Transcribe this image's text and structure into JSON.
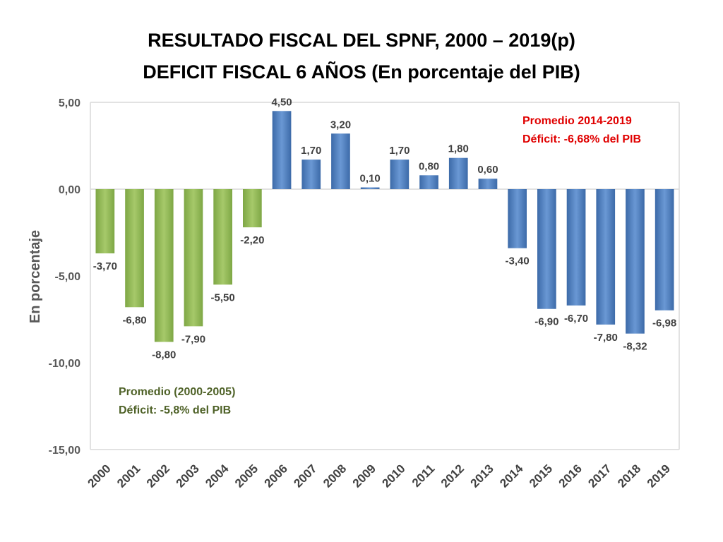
{
  "title": {
    "line1": "RESULTADO FISCAL DEL SPNF, 2000 – 2019(p)",
    "line2": "DEFICIT FISCAL 6 AÑOS (En porcentaje del PIB)"
  },
  "colors": {
    "green_series": "#8fbc4f",
    "blue_series": "#4f81bd",
    "annotation_green": "#4f6228",
    "annotation_red": "#e00000",
    "axis_text": "#595959"
  },
  "annotations": {
    "recent": {
      "line1": "Promedio 2014-2019",
      "line2": "Déficit: -6,68% del PIB"
    },
    "early": {
      "line1": "Promedio (2000-2005)",
      "line2": "Déficit: -5,8% del PIB"
    }
  },
  "chart_data": {
    "type": "bar",
    "title": "RESULTADO FISCAL DEL SPNF, 2000 – 2019(p) DEFICIT FISCAL 6 AÑOS (En porcentaje del PIB)",
    "xlabel": "",
    "ylabel": "En porcentaje",
    "ylim": [
      -15,
      5
    ],
    "yticks": [
      5,
      0,
      -5,
      -10,
      -15
    ],
    "ytick_labels": [
      "5,00",
      "0,00",
      "-5,00",
      "-10,00",
      "-15,00"
    ],
    "grid": false,
    "legend": "none",
    "categories": [
      "2000",
      "2001",
      "2002",
      "2003",
      "2004",
      "2005",
      "2006",
      "2007",
      "2008",
      "2009",
      "2010",
      "2011",
      "2012",
      "2013",
      "2014",
      "2015",
      "2016",
      "2017",
      "2018",
      "2019"
    ],
    "values": [
      -3.7,
      -6.8,
      -8.8,
      -7.9,
      -5.5,
      -2.2,
      4.5,
      1.7,
      3.2,
      0.1,
      1.7,
      0.8,
      1.8,
      0.6,
      -3.4,
      -6.9,
      -6.7,
      -7.8,
      -8.32,
      -6.98
    ],
    "value_labels": [
      "-3,70",
      "-6,80",
      "-8,80",
      "-7,90",
      "-5,50",
      "-2,20",
      "4,50",
      "1,70",
      "3,20",
      "0,10",
      "1,70",
      "0,80",
      "1,80",
      "0,60",
      "-3,40",
      "-6,90",
      "-6,70",
      "-7,80",
      "-8,32",
      "-6,98"
    ],
    "bar_color_group": [
      "green",
      "green",
      "green",
      "green",
      "green",
      "green",
      "blue",
      "blue",
      "blue",
      "blue",
      "blue",
      "blue",
      "blue",
      "blue",
      "blue",
      "blue",
      "blue",
      "blue",
      "blue",
      "blue"
    ]
  }
}
